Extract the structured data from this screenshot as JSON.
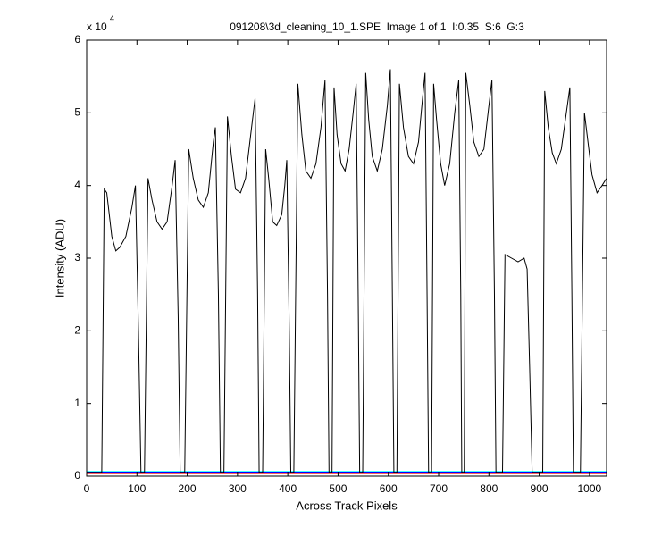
{
  "chart_data": {
    "type": "line",
    "title": "091208\\3d_cleaning_10_1.SPE  Image 1 of 1  I:0.35  S:6  G:3",
    "y_multiplier": "x 10",
    "y_multiplier_exponent": "4",
    "xlabel": "Across Track Pixels",
    "ylabel": "Intensity (ADU)",
    "xlim": [
      0,
      1034
    ],
    "ylim": [
      0,
      60000
    ],
    "xticks": [
      0,
      100,
      200,
      300,
      400,
      500,
      600,
      700,
      800,
      900,
      1000
    ],
    "yticks": [
      {
        "value": 0,
        "label": "0"
      },
      {
        "value": 10000,
        "label": "1"
      },
      {
        "value": 20000,
        "label": "2"
      },
      {
        "value": 30000,
        "label": "3"
      },
      {
        "value": 40000,
        "label": "4"
      },
      {
        "value": 50000,
        "label": "5"
      },
      {
        "value": 60000,
        "label": "6"
      }
    ],
    "series": [
      {
        "color": "#00ffff",
        "x": [
          0,
          1034
        ],
        "values": [
          650,
          650
        ]
      },
      {
        "color": "#00aa00",
        "x": [
          0,
          1034
        ],
        "values": [
          450,
          450
        ]
      },
      {
        "color": "#ff0000",
        "x": [
          0,
          1034
        ],
        "values": [
          350,
          350
        ]
      },
      {
        "color": "#0000ff",
        "x": [
          0,
          1034
        ],
        "values": [
          550,
          550
        ]
      },
      {
        "color": "#000000",
        "x": [
          0,
          30,
          35,
          40,
          50,
          58,
          66,
          78,
          90,
          97,
          103,
          108,
          115,
          122,
          130,
          140,
          150,
          160,
          170,
          176,
          182,
          186,
          195,
          203,
          212,
          222,
          232,
          242,
          252,
          256,
          262,
          266,
          273,
          280,
          288,
          296,
          306,
          316,
          328,
          335,
          340,
          343,
          350,
          356,
          362,
          370,
          378,
          388,
          394,
          398,
          403,
          406,
          412,
          420,
          428,
          436,
          446,
          456,
          466,
          474,
          479,
          482,
          488,
          492,
          498,
          506,
          514,
          522,
          530,
          536,
          540,
          543,
          549,
          555,
          561,
          568,
          578,
          588,
          598,
          604,
          608,
          611,
          617,
          622,
          630,
          640,
          650,
          660,
          668,
          673,
          677,
          680,
          686,
          690,
          696,
          704,
          712,
          722,
          732,
          740,
          744,
          746,
          751,
          754,
          762,
          770,
          780,
          790,
          800,
          806,
          811,
          814,
          827,
          832,
          845,
          858,
          870,
          876,
          881,
          886,
          907,
          911,
          918,
          926,
          934,
          944,
          954,
          961,
          965,
          968,
          982,
          990,
          997,
          1005,
          1015,
          1025,
          1034
        ],
        "values": [
          500,
          500,
          39500,
          39000,
          33000,
          31000,
          31500,
          33000,
          37000,
          40000,
          20000,
          500,
          500,
          41000,
          38000,
          35000,
          34000,
          35000,
          40000,
          43500,
          22000,
          500,
          500,
          45000,
          41000,
          38000,
          37000,
          39000,
          46000,
          48000,
          25000,
          500,
          500,
          49500,
          44000,
          39500,
          39000,
          41000,
          48000,
          52000,
          25000,
          500,
          500,
          45000,
          41000,
          35000,
          34500,
          36000,
          40000,
          43500,
          20000,
          500,
          500,
          54000,
          47000,
          42000,
          41000,
          43000,
          48000,
          54500,
          25000,
          500,
          500,
          53500,
          47000,
          43000,
          42000,
          45000,
          50000,
          54000,
          25000,
          500,
          500,
          55500,
          49000,
          44000,
          42000,
          45000,
          51000,
          56000,
          25000,
          500,
          500,
          54000,
          48000,
          44000,
          43000,
          46000,
          52000,
          55500,
          25000,
          500,
          500,
          54000,
          49000,
          43000,
          40000,
          43000,
          50000,
          54500,
          25000,
          500,
          500,
          55500,
          51000,
          46000,
          44000,
          45000,
          51000,
          54500,
          25000,
          500,
          500,
          30500,
          30000,
          29500,
          30000,
          28500,
          15000,
          500,
          500,
          53000,
          48000,
          44500,
          43000,
          45000,
          50000,
          53500,
          25000,
          500,
          500,
          50000,
          46000,
          41500,
          39000,
          40000,
          41000
        ]
      }
    ]
  }
}
